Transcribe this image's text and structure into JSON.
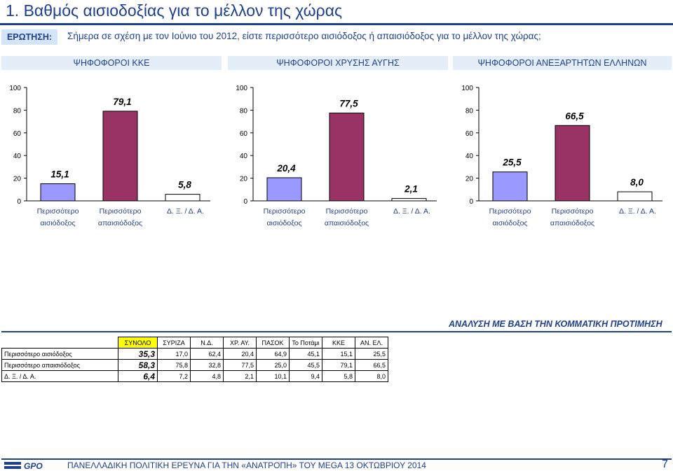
{
  "header": {
    "title": "1.   Βαθμός αισιοδοξίας για το μέλλον της χώρας",
    "question_label": "ΕΡΩΤΗΣΗ:",
    "question_text": "Σήμερα σε σχέση με τον Ιούνιο του 2012, είστε περισσότερο αισιόδοξος ή απαισιόδοξος για το μέλλον της χώρας;"
  },
  "colors": {
    "accent": "#1f3f8f",
    "optimistic": "#9999ff",
    "pessimistic": "#993366",
    "dk": "#ffffff",
    "total_header": "#ffff00"
  },
  "chart_data": [
    {
      "type": "bar",
      "title": "ΨΗΦΟΦΟΡΟΙ ΚΚΕ",
      "categories": [
        "Περισσότερο αισιόδοξος",
        "Περισσότερο απαισιόδοξος",
        "Δ. Ξ. / Δ. Α."
      ],
      "values": [
        15.1,
        79.1,
        5.8
      ],
      "value_labels": [
        "15,1",
        "79,1",
        "5,8"
      ],
      "ylim": [
        0,
        100
      ],
      "yticks": [
        "0",
        "20",
        "40",
        "60",
        "80",
        "100"
      ],
      "grid": false
    },
    {
      "type": "bar",
      "title": "ΨΗΦΟΦΟΡΟΙ ΧΡΥΣΗΣ ΑΥΓΗΣ",
      "categories": [
        "Περισσότερο αισιόδοξος",
        "Περισσότερο απαισιόδοξος",
        "Δ. Ξ. / Δ. Α."
      ],
      "values": [
        20.4,
        77.5,
        2.1
      ],
      "value_labels": [
        "20,4",
        "77,5",
        "2,1"
      ],
      "ylim": [
        0,
        100
      ],
      "yticks": [
        "0",
        "20",
        "40",
        "60",
        "80",
        "100"
      ],
      "grid": false
    },
    {
      "type": "bar",
      "title": "ΨΗΦΟΦΟΡΟΙ ΑΝΕΞΑΡΤΗΤΩΝ ΕΛΛΗΝΩΝ",
      "categories": [
        "Περισσότερο αισιόδοξος",
        "Περισσότερο απαισιόδοξος",
        "Δ. Ξ. / Δ. Α."
      ],
      "values": [
        25.5,
        66.5,
        8.0
      ],
      "value_labels": [
        "25,5",
        "66,5",
        "8,0"
      ],
      "ylim": [
        0,
        100
      ],
      "yticks": [
        "0",
        "20",
        "40",
        "60",
        "80",
        "100"
      ],
      "grid": false
    }
  ],
  "analysis": {
    "title": "ΑΝΑΛΥΣΗ ΜΕ ΒΑΣΗ ΤΗΝ ΚΟΜΜΑΤΙΚΗ ΠΡΟΤΙΜΗΣΗ",
    "headers": [
      "ΣΥΝΟΛΟ",
      "ΣΥΡΙΖΑ",
      "Ν.Δ.",
      "ΧΡ. ΑΥ.",
      "ΠΑΣΟΚ",
      "Το Ποτάμι",
      "ΚΚΕ",
      "ΑΝ. ΕΛ."
    ],
    "rows": [
      {
        "label": "Περισσότερο αισιόδοξος",
        "total": "35,3",
        "values": [
          "17,0",
          "62,4",
          "20,4",
          "64,9",
          "45,1",
          "15,1",
          "25,5"
        ]
      },
      {
        "label": "Περισσότερο απαισιόδοξος",
        "total": "58,3",
        "values": [
          "75,8",
          "32,8",
          "77,5",
          "25,0",
          "45,5",
          "79,1",
          "66,5"
        ]
      },
      {
        "label": "Δ. Ξ. / Δ. Α.",
        "total": "6,4",
        "values": [
          "7,2",
          "4,8",
          "2,1",
          "10,1",
          "9,4",
          "5,8",
          "8,0"
        ]
      }
    ]
  },
  "footer": {
    "logo": "GPO",
    "text": "ΠΑΝΕΛΛΑΔΙΚΗ ΠΟΛΙΤΙΚΗ ΕΡΕΥΝΑ ΓΙΑ ΤΗΝ «ΑΝΑΤΡΟΠΗ» ΤΟΥ MEGA  13  ΟΚΤΩΒΡΙΟΥ 2014",
    "page": "7"
  }
}
